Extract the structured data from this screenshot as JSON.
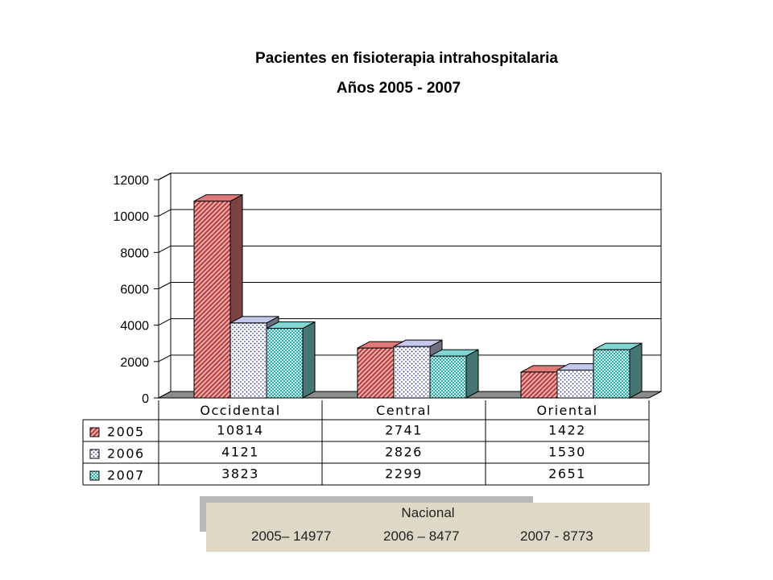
{
  "title": "Pacientes en fisioterapia intrahospitalaria",
  "subtitle": "Años 2005 - 2007",
  "chart_data": {
    "type": "bar",
    "title": "Pacientes en fisioterapia intrahospitalaria",
    "subtitle": "Años 2005 - 2007",
    "categories": [
      "Occidental",
      "Central",
      "Oriental"
    ],
    "series": [
      {
        "name": "2005",
        "values": [
          10814,
          2741,
          1422
        ],
        "color": "#e07a7a"
      },
      {
        "name": "2006",
        "values": [
          4121,
          2826,
          1530
        ],
        "color": "#c4c8ec"
      },
      {
        "name": "2007",
        "values": [
          3823,
          2299,
          2651
        ],
        "color": "#7fd6d2"
      }
    ],
    "ylim": [
      0,
      12000
    ],
    "yticks": [
      "0",
      "2000",
      "4000",
      "6000",
      "8000",
      "10000",
      "12000"
    ],
    "data_table": {
      "rows": [
        {
          "label": "2005",
          "values": [
            "10814",
            "2741",
            "1422"
          ]
        },
        {
          "label": "2006",
          "values": [
            "4121",
            "2826",
            "1530"
          ]
        },
        {
          "label": "2007",
          "values": [
            "3823",
            "2299",
            "2651"
          ]
        }
      ]
    },
    "grid": true,
    "style": "3d-clustered-bar"
  },
  "nacional": {
    "title": "Nacional",
    "v2005": "2005– 14977",
    "v2006": "2006 – 8477",
    "v2007": "2007 - 8773"
  }
}
